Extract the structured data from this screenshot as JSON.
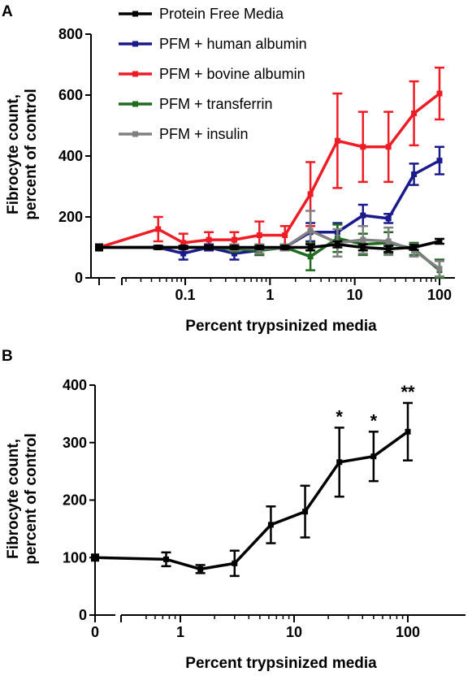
{
  "chart_data": [
    {
      "type": "line",
      "panel_label": "A",
      "xlabel": "Percent trypsinized media",
      "ylabel_line1": "Fibrocyte count,",
      "ylabel_line2": "percent of control",
      "xscale": "log (broken axis, separate control point at left)",
      "ylim": [
        0,
        800
      ],
      "xlim": [
        0.02,
        150
      ],
      "yticks": [
        0,
        200,
        400,
        600,
        800
      ],
      "ytick_labels": [
        "0",
        "200",
        "400",
        "600",
        "800"
      ],
      "xticks": [
        0.1,
        1,
        10,
        100
      ],
      "xtick_labels": [
        "0.1",
        "1",
        "10",
        "100"
      ],
      "legend_position": "top-left",
      "grid": false,
      "x": [
        0.048,
        0.095,
        0.19,
        0.38,
        0.75,
        1.5,
        3,
        6.25,
        12.5,
        25,
        50,
        100
      ],
      "series": [
        {
          "name": "Protein Free Media",
          "color": "#000000",
          "control": 100,
          "values": [
            100,
            100,
            100,
            100,
            100,
            100,
            100,
            110,
            100,
            95,
            100,
            120
          ],
          "errors": [
            5,
            5,
            5,
            5,
            5,
            5,
            10,
            10,
            10,
            10,
            8,
            8
          ]
        },
        {
          "name": "PFM + human albumin",
          "color": "#1a1a8c",
          "control": 100,
          "values": [
            100,
            80,
            100,
            80,
            90,
            100,
            150,
            150,
            205,
            195,
            340,
            385
          ],
          "errors": [
            5,
            20,
            10,
            20,
            15,
            10,
            30,
            30,
            35,
            15,
            35,
            45
          ]
        },
        {
          "name": "PFM + bovine albumin",
          "color": "#ee1c25",
          "control": 100,
          "values": [
            160,
            115,
            125,
            125,
            140,
            140,
            275,
            450,
            430,
            430,
            540,
            605
          ],
          "errors": [
            40,
            30,
            25,
            25,
            45,
            30,
            105,
            155,
            115,
            115,
            105,
            85
          ]
        },
        {
          "name": "PFM + transferrin",
          "color": "#1f6b1f",
          "control": 100,
          "values": [
            100,
            100,
            100,
            95,
            90,
            100,
            70,
            130,
            110,
            115,
            95,
            25
          ],
          "errors": [
            5,
            5,
            5,
            10,
            15,
            10,
            45,
            45,
            35,
            35,
            20,
            35
          ]
        },
        {
          "name": "PFM + insulin",
          "color": "#808080",
          "control": 100,
          "values": [
            100,
            100,
            100,
            100,
            95,
            100,
            155,
            115,
            125,
            120,
            90,
            30
          ],
          "errors": [
            5,
            5,
            5,
            10,
            15,
            10,
            65,
            45,
            45,
            45,
            20,
            25
          ]
        }
      ]
    },
    {
      "type": "line",
      "panel_label": "B",
      "xlabel": "Percent trypsinized media",
      "ylabel_line1": "Fibrocyte count,",
      "ylabel_line2": "percent of control",
      "xscale": "log (broken axis, separate control point at 0)",
      "ylim": [
        0,
        400
      ],
      "xlim": [
        0.4,
        180
      ],
      "yticks": [
        0,
        100,
        200,
        300,
        400
      ],
      "ytick_labels": [
        "0",
        "100",
        "200",
        "300",
        "400"
      ],
      "control_tick_label": "0",
      "xticks": [
        1,
        10,
        100
      ],
      "xtick_labels": [
        "1",
        "10",
        "100"
      ],
      "grid": false,
      "series": [
        {
          "color": "#000000",
          "control": 100,
          "x": [
            0.75,
            1.5,
            3,
            6.25,
            12.5,
            25,
            50,
            100
          ],
          "values": [
            97,
            80,
            90,
            157,
            180,
            266,
            276,
            319
          ],
          "errors": [
            12,
            7,
            22,
            32,
            45,
            60,
            43,
            50
          ]
        }
      ],
      "annotations": [
        {
          "x": 25,
          "text": "*"
        },
        {
          "x": 50,
          "text": "*"
        },
        {
          "x": 100,
          "text": "**"
        }
      ]
    }
  ]
}
